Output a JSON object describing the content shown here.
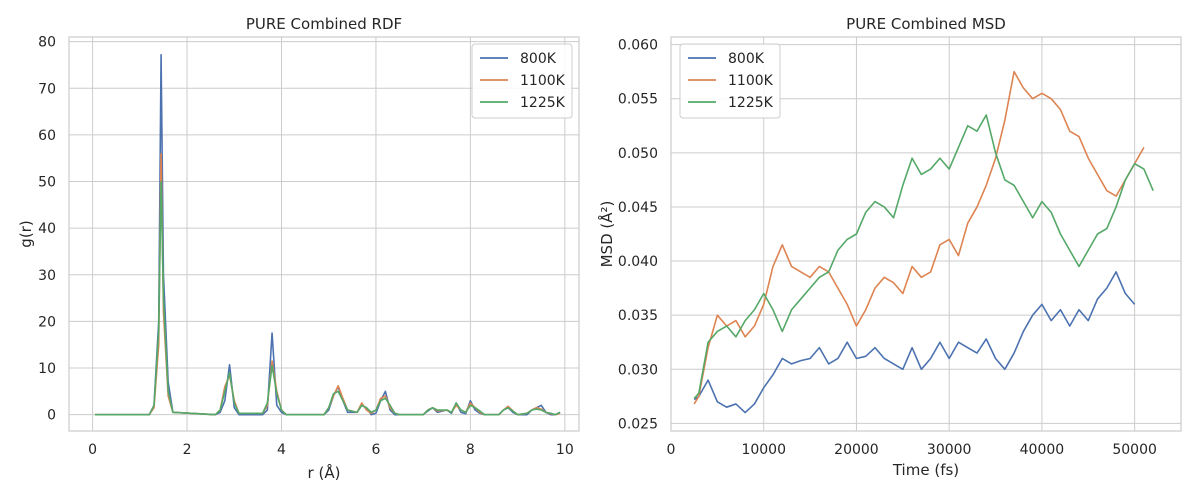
{
  "chart_data": [
    {
      "type": "line",
      "title": "PURE Combined RDF",
      "xlabel": "r (Å)",
      "ylabel": "g(r)",
      "xlim": [
        -0.5,
        10.3
      ],
      "ylim": [
        -3.5,
        81
      ],
      "xticks": [
        0,
        2,
        4,
        6,
        8,
        10
      ],
      "xtick_labels": [
        "0",
        "2",
        "4",
        "6",
        "8",
        "10"
      ],
      "yticks": [
        0,
        10,
        20,
        30,
        40,
        50,
        60,
        70,
        80
      ],
      "ytick_labels": [
        "0",
        "10",
        "20",
        "30",
        "40",
        "50",
        "60",
        "70",
        "80"
      ],
      "legend_position": "top-right",
      "series": [
        {
          "name": "800K",
          "color": "#4c72b0",
          "x": [
            0.05,
            1.1,
            1.2,
            1.3,
            1.4,
            1.45,
            1.5,
            1.6,
            1.7,
            2.6,
            2.7,
            2.8,
            2.9,
            3.0,
            3.1,
            3.6,
            3.7,
            3.8,
            3.9,
            4.0,
            4.1,
            4.9,
            5.0,
            5.1,
            5.2,
            5.3,
            5.4,
            5.6,
            5.7,
            5.8,
            5.9,
            6.0,
            6.1,
            6.2,
            6.3,
            6.4,
            6.5,
            7.0,
            7.1,
            7.2,
            7.3,
            7.5,
            7.6,
            7.7,
            7.8,
            7.9,
            8.0,
            8.1,
            8.2,
            8.3,
            8.6,
            8.7,
            8.8,
            8.9,
            9.0,
            9.2,
            9.3,
            9.4,
            9.5,
            9.6,
            9.7,
            9.8,
            9.9
          ],
          "y": [
            0,
            0,
            0,
            2,
            20,
            77.2,
            30,
            7,
            0.5,
            0,
            0.5,
            3,
            10.7,
            1.5,
            0,
            0,
            1,
            17.5,
            2,
            0.5,
            0,
            0,
            1,
            4,
            6,
            3,
            0.5,
            0.5,
            2,
            1.5,
            0,
            0.3,
            3,
            5,
            1,
            0,
            0,
            0,
            0.8,
            1.5,
            0.5,
            1,
            0.3,
            2.5,
            0.5,
            0.2,
            3,
            1,
            0.3,
            0,
            0,
            1,
            1.5,
            0.5,
            0,
            0,
            1,
            1.5,
            2,
            0.5,
            0,
            0,
            0.5
          ]
        },
        {
          "name": "1100K",
          "color": "#dd8452",
          "x": [
            0.05,
            1.1,
            1.2,
            1.3,
            1.4,
            1.45,
            1.5,
            1.6,
            1.7,
            2.6,
            2.7,
            2.8,
            2.9,
            3.0,
            3.1,
            3.6,
            3.7,
            3.8,
            3.9,
            4.0,
            4.1,
            4.9,
            5.0,
            5.1,
            5.2,
            5.3,
            5.4,
            5.6,
            5.7,
            5.8,
            5.9,
            6.0,
            6.1,
            6.2,
            6.3,
            6.4,
            6.5,
            7.0,
            7.1,
            7.2,
            7.3,
            7.5,
            7.6,
            7.7,
            7.8,
            7.9,
            8.0,
            8.1,
            8.2,
            8.3,
            8.6,
            8.7,
            8.8,
            8.9,
            9.0,
            9.2,
            9.3,
            9.4,
            9.5,
            9.6,
            9.7,
            9.8,
            9.9
          ],
          "y": [
            0,
            0,
            0,
            1.5,
            15,
            56,
            22,
            4,
            0.5,
            0,
            1,
            6,
            8.5,
            3,
            0.3,
            0.3,
            2,
            11.5,
            5,
            1,
            0,
            0,
            1.5,
            4,
            6.2,
            3.5,
            1,
            0.5,
            2.5,
            1,
            0.3,
            1,
            3.5,
            4,
            1.5,
            0.3,
            0,
            0,
            1,
            1.5,
            0.8,
            1,
            0.5,
            2,
            1,
            0.5,
            2.5,
            1.5,
            0.5,
            0,
            0,
            1,
            1.8,
            0.8,
            0,
            0.3,
            1,
            1.5,
            1.2,
            0.5,
            0.2,
            0,
            0.3
          ]
        },
        {
          "name": "1225K",
          "color": "#55a868",
          "x": [
            0.05,
            1.1,
            1.2,
            1.3,
            1.4,
            1.45,
            1.5,
            1.6,
            1.7,
            2.6,
            2.7,
            2.8,
            2.9,
            3.0,
            3.1,
            3.6,
            3.7,
            3.8,
            3.9,
            4.0,
            4.1,
            4.9,
            5.0,
            5.1,
            5.2,
            5.3,
            5.4,
            5.6,
            5.7,
            5.8,
            5.9,
            6.0,
            6.1,
            6.2,
            6.3,
            6.4,
            6.5,
            7.0,
            7.1,
            7.2,
            7.3,
            7.5,
            7.6,
            7.7,
            7.8,
            7.9,
            8.0,
            8.1,
            8.2,
            8.3,
            8.6,
            8.7,
            8.8,
            8.9,
            9.0,
            9.2,
            9.3,
            9.4,
            9.5,
            9.6,
            9.7,
            9.8,
            9.9
          ],
          "y": [
            0,
            0,
            0,
            2,
            18,
            50,
            25,
            5,
            0.5,
            0,
            1,
            5,
            9,
            2.5,
            0.3,
            0.3,
            2.5,
            10.5,
            4.5,
            1,
            0,
            0,
            1.5,
            4.5,
            5,
            3,
            1,
            0.5,
            2,
            1.5,
            0.5,
            1,
            3,
            3.5,
            2,
            0.3,
            0,
            0,
            1,
            1.5,
            1,
            1,
            0.5,
            2.5,
            1,
            0.5,
            2,
            1.5,
            0.8,
            0,
            0,
            1,
            1.5,
            0.8,
            0,
            0.3,
            1,
            1.2,
            1,
            0.5,
            0.3,
            0,
            0.5
          ]
        }
      ]
    },
    {
      "type": "line",
      "title": "PURE Combined MSD",
      "xlabel": "Time (fs)",
      "ylabel": "MSD (Å²)",
      "xlim": [
        0,
        55000
      ],
      "ylim": [
        0.0243,
        0.0607
      ],
      "xticks": [
        0,
        10000,
        20000,
        30000,
        40000,
        50000
      ],
      "xtick_labels": [
        "0",
        "10000",
        "20000",
        "30000",
        "40000",
        "50000"
      ],
      "yticks": [
        0.025,
        0.03,
        0.035,
        0.04,
        0.045,
        0.05,
        0.055,
        0.06
      ],
      "ytick_labels": [
        "0.025",
        "0.030",
        "0.035",
        "0.040",
        "0.045",
        "0.050",
        "0.055",
        "0.060"
      ],
      "legend_position": "top-left",
      "series": [
        {
          "name": "800K",
          "color": "#4c72b0",
          "x": [
            2500,
            3000,
            4000,
            5000,
            6000,
            7000,
            8000,
            9000,
            10000,
            11000,
            12000,
            13000,
            14000,
            15000,
            16000,
            17000,
            18000,
            19000,
            20000,
            21000,
            22000,
            23000,
            24000,
            25000,
            26000,
            27000,
            28000,
            29000,
            30000,
            31000,
            32000,
            33000,
            34000,
            35000,
            36000,
            37000,
            38000,
            39000,
            40000,
            41000,
            42000,
            43000,
            44000,
            45000,
            46000,
            47000,
            48000,
            49000,
            50000
          ],
          "y": [
            0.0272,
            0.0275,
            0.029,
            0.027,
            0.0265,
            0.0268,
            0.026,
            0.0268,
            0.0283,
            0.0295,
            0.031,
            0.0305,
            0.0308,
            0.031,
            0.032,
            0.0305,
            0.031,
            0.0325,
            0.031,
            0.0312,
            0.032,
            0.031,
            0.0305,
            0.03,
            0.032,
            0.03,
            0.031,
            0.0325,
            0.031,
            0.0325,
            0.032,
            0.0315,
            0.0328,
            0.031,
            0.03,
            0.0315,
            0.0335,
            0.035,
            0.036,
            0.0345,
            0.0355,
            0.034,
            0.0355,
            0.0345,
            0.0365,
            0.0375,
            0.039,
            0.037,
            0.036
          ]
        },
        {
          "name": "1100K",
          "color": "#dd8452",
          "x": [
            2500,
            3000,
            4000,
            5000,
            6000,
            7000,
            8000,
            9000,
            10000,
            11000,
            12000,
            13000,
            14000,
            15000,
            16000,
            17000,
            18000,
            19000,
            20000,
            21000,
            22000,
            23000,
            24000,
            25000,
            26000,
            27000,
            28000,
            29000,
            30000,
            31000,
            32000,
            33000,
            34000,
            35000,
            36000,
            37000,
            38000,
            39000,
            40000,
            41000,
            42000,
            43000,
            44000,
            45000,
            46000,
            47000,
            48000,
            49000,
            50000,
            51000
          ],
          "y": [
            0.0268,
            0.0275,
            0.032,
            0.035,
            0.034,
            0.0345,
            0.033,
            0.034,
            0.036,
            0.0395,
            0.0415,
            0.0395,
            0.039,
            0.0385,
            0.0395,
            0.039,
            0.0375,
            0.036,
            0.034,
            0.0355,
            0.0375,
            0.0385,
            0.038,
            0.037,
            0.0395,
            0.0385,
            0.039,
            0.0415,
            0.042,
            0.0405,
            0.0435,
            0.045,
            0.047,
            0.0495,
            0.053,
            0.0575,
            0.056,
            0.055,
            0.0555,
            0.055,
            0.054,
            0.052,
            0.0515,
            0.0495,
            0.048,
            0.0465,
            0.046,
            0.0475,
            0.049,
            0.0505
          ]
        },
        {
          "name": "1225K",
          "color": "#55a868",
          "x": [
            2500,
            3000,
            4000,
            5000,
            6000,
            7000,
            8000,
            9000,
            10000,
            11000,
            12000,
            13000,
            14000,
            15000,
            16000,
            17000,
            18000,
            19000,
            20000,
            21000,
            22000,
            23000,
            24000,
            25000,
            26000,
            27000,
            28000,
            29000,
            30000,
            31000,
            32000,
            33000,
            34000,
            35000,
            36000,
            37000,
            38000,
            39000,
            40000,
            41000,
            42000,
            43000,
            44000,
            45000,
            46000,
            47000,
            48000,
            49000,
            50000,
            51000,
            52000
          ],
          "y": [
            0.0273,
            0.0278,
            0.0325,
            0.0335,
            0.034,
            0.033,
            0.0345,
            0.0355,
            0.037,
            0.0355,
            0.0335,
            0.0355,
            0.0365,
            0.0375,
            0.0385,
            0.039,
            0.041,
            0.042,
            0.0425,
            0.0445,
            0.0455,
            0.045,
            0.044,
            0.047,
            0.0495,
            0.048,
            0.0485,
            0.0495,
            0.0485,
            0.0505,
            0.0525,
            0.052,
            0.0535,
            0.05,
            0.0475,
            0.047,
            0.0455,
            0.044,
            0.0455,
            0.0445,
            0.0425,
            0.041,
            0.0395,
            0.041,
            0.0425,
            0.043,
            0.045,
            0.0475,
            0.049,
            0.0485,
            0.0465
          ]
        }
      ]
    }
  ]
}
